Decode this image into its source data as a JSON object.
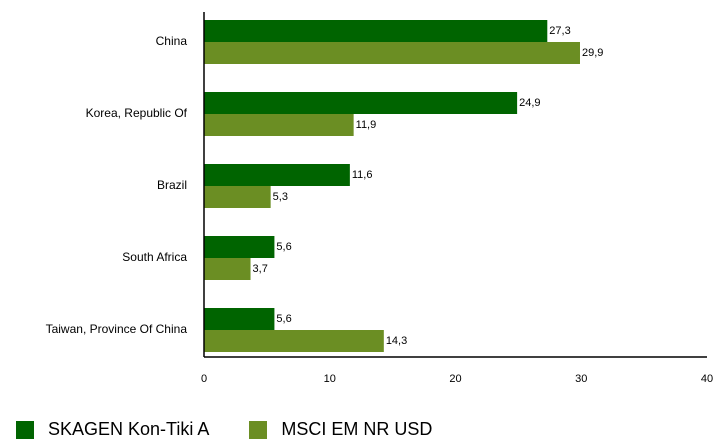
{
  "chart_data": {
    "type": "bar",
    "orientation": "horizontal",
    "categories": [
      "China",
      "Korea, Republic Of",
      "Brazil",
      "South Africa",
      "Taiwan, Province Of China"
    ],
    "series": [
      {
        "name": "SKAGEN Kon-Tiki A",
        "color": "#006400",
        "values": [
          27.3,
          24.9,
          11.6,
          5.6,
          5.6
        ],
        "labels": [
          "27,3",
          "24,9",
          "11,6",
          "5,6",
          "5,6"
        ]
      },
      {
        "name": "MSCI EM NR USD",
        "color": "#6B8E23",
        "values": [
          29.9,
          11.9,
          5.3,
          3.7,
          14.3
        ],
        "labels": [
          "29,9",
          "11,9",
          "5,3",
          "3,7",
          "14,3"
        ]
      }
    ],
    "xlim": [
      0,
      40
    ],
    "xticks": [
      0,
      10,
      20,
      30,
      40
    ],
    "grid": false,
    "legend_position": "bottom"
  }
}
